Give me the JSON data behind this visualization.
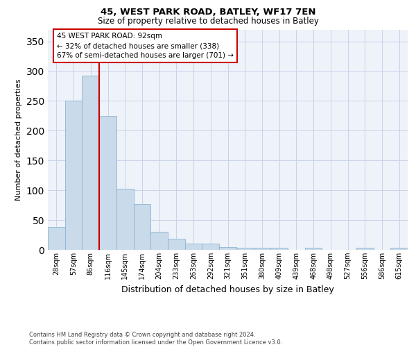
{
  "title": "45, WEST PARK ROAD, BATLEY, WF17 7EN",
  "subtitle": "Size of property relative to detached houses in Batley",
  "xlabel": "Distribution of detached houses by size in Batley",
  "ylabel": "Number of detached properties",
  "bar_labels": [
    "28sqm",
    "57sqm",
    "86sqm",
    "116sqm",
    "145sqm",
    "174sqm",
    "204sqm",
    "233sqm",
    "263sqm",
    "292sqm",
    "321sqm",
    "351sqm",
    "380sqm",
    "409sqm",
    "439sqm",
    "468sqm",
    "498sqm",
    "527sqm",
    "556sqm",
    "586sqm",
    "615sqm"
  ],
  "bar_values": [
    38,
    250,
    293,
    225,
    103,
    77,
    30,
    19,
    10,
    10,
    5,
    4,
    4,
    3,
    0,
    3,
    0,
    0,
    3,
    0,
    3
  ],
  "bar_color": "#c9daea",
  "bar_edge_color": "#8ab4d4",
  "grid_color": "#c8d4e8",
  "background_color": "#eef2f9",
  "annotation_line1": "45 WEST PARK ROAD: 92sqm",
  "annotation_line2": "← 32% of detached houses are smaller (338)",
  "annotation_line3": "67% of semi-detached houses are larger (701) →",
  "vline_color": "#cc0000",
  "vline_x": 2.5,
  "ylim": [
    0,
    370
  ],
  "yticks": [
    0,
    50,
    100,
    150,
    200,
    250,
    300,
    350
  ],
  "title_fontsize": 9.5,
  "subtitle_fontsize": 8.5,
  "ylabel_fontsize": 8,
  "xlabel_fontsize": 9,
  "tick_fontsize": 7,
  "annot_fontsize": 7.5,
  "footer_fontsize": 6,
  "footer_line1": "Contains HM Land Registry data © Crown copyright and database right 2024.",
  "footer_line2": "Contains public sector information licensed under the Open Government Licence v3.0."
}
